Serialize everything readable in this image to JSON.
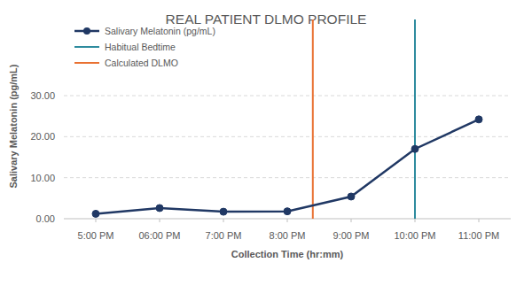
{
  "chart_data": {
    "type": "line",
    "title": "REAL PATIENT DLMO PROFILE",
    "x_label": "Collection Time (hr:mm)",
    "y_label": "Salivary Melatonin (pg/mL)",
    "x": [
      17,
      18,
      19,
      20,
      21,
      22,
      23
    ],
    "xlim": [
      16.5,
      23.5
    ],
    "xticks": [
      {
        "value": 17,
        "label": "5:00 PM"
      },
      {
        "value": 18,
        "label": "06:00 PM"
      },
      {
        "value": 19,
        "label": "7:00 PM"
      },
      {
        "value": 20,
        "label": "8:00 PM"
      },
      {
        "value": 21,
        "label": "9:00 PM"
      },
      {
        "value": 22,
        "label": "10:00 PM"
      },
      {
        "value": 23,
        "label": "11:00 PM"
      }
    ],
    "ylim": [
      0,
      30
    ],
    "yticks": [
      {
        "value": 0,
        "label": "0.00"
      },
      {
        "value": 10,
        "label": "10.00"
      },
      {
        "value": 20,
        "label": "20.00"
      },
      {
        "value": 30,
        "label": "30.00"
      }
    ],
    "grid": true,
    "legend": "upper left",
    "series": [
      {
        "name": "Salivary Melatonin (pg/mL)",
        "color": "#203864",
        "marker": "circle",
        "line_style": "solid",
        "values": [
          1.2,
          2.6,
          1.7,
          1.8,
          5.4,
          17.0,
          24.2
        ]
      }
    ],
    "vlines": [
      {
        "name": "Habitual Bedtime",
        "x": 22,
        "color": "#2E8B9E"
      },
      {
        "name": "Calculated DLMO",
        "x": 20.4,
        "color": "#E97132"
      }
    ]
  }
}
